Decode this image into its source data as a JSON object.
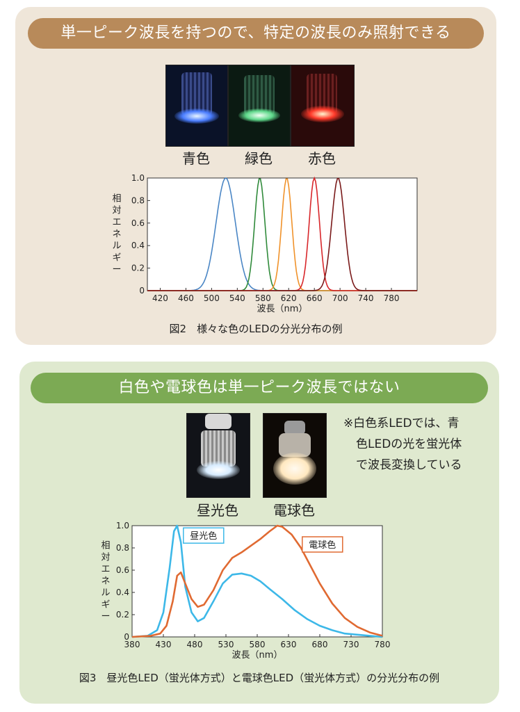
{
  "panel1": {
    "banner": "単一ピーク波長を持つので、特定の波長のみ照射できる",
    "photo_labels": [
      "青色",
      "緑色",
      "赤色"
    ],
    "caption": "図2　様々な色のLEDの分光分布の例",
    "chart_data": {
      "type": "line",
      "ylabel": "相対エネルギー",
      "xlabel": "波長（nm）",
      "xlim": [
        400,
        820
      ],
      "ylim": [
        0,
        1.0
      ],
      "xticks": [
        420,
        460,
        500,
        540,
        580,
        620,
        660,
        700,
        740,
        780
      ],
      "yticks": [
        "0",
        "0.2",
        "0.4",
        "0.6",
        "0.8",
        "1.0"
      ],
      "series": [
        {
          "color": "#4a86c5",
          "peak": 522,
          "width": 15
        },
        {
          "color": "#2f8a3a",
          "peak": 575,
          "width": 8
        },
        {
          "color": "#f0922a",
          "peak": 617,
          "width": 8
        },
        {
          "color": "#d8262a",
          "peak": 660,
          "width": 8
        },
        {
          "color": "#7a1a1a",
          "peak": 697,
          "width": 10
        }
      ]
    }
  },
  "panel2": {
    "banner": "白色や電球色は単一ピーク波長ではない",
    "photo_labels": [
      "昼光色",
      "電球色"
    ],
    "note_lines": [
      "※白色系LEDでは、青",
      "色LEDの光を蛍光体",
      "で波長変換している"
    ],
    "caption": "図3　昼光色LED（蛍光体方式）と電球色LED（蛍光体方式）の分光分布の例",
    "chart_data": {
      "type": "line",
      "ylabel": "相対エネルギー",
      "xlabel": "波長（nm）",
      "xlim": [
        380,
        780
      ],
      "ylim": [
        0,
        1.0
      ],
      "xticks": [
        380,
        430,
        480,
        530,
        580,
        630,
        680,
        730,
        780
      ],
      "yticks": [
        "0",
        "0.2",
        "0.4",
        "0.6",
        "0.8",
        "1.0"
      ],
      "series": [
        {
          "name": "昼光色",
          "color": "#3db8e8",
          "x": [
            380,
            405,
            420,
            430,
            440,
            447,
            452,
            458,
            465,
            475,
            485,
            495,
            510,
            525,
            540,
            555,
            570,
            585,
            600,
            620,
            640,
            660,
            680,
            700,
            720,
            740,
            760,
            780
          ],
          "y": [
            0,
            0.01,
            0.06,
            0.22,
            0.62,
            0.95,
            1.0,
            0.85,
            0.45,
            0.22,
            0.14,
            0.17,
            0.32,
            0.48,
            0.56,
            0.57,
            0.55,
            0.5,
            0.43,
            0.34,
            0.24,
            0.16,
            0.1,
            0.06,
            0.03,
            0.02,
            0.01,
            0.0
          ]
        },
        {
          "name": "電球色",
          "color": "#e06a32",
          "x": [
            380,
            410,
            425,
            435,
            445,
            452,
            458,
            465,
            475,
            485,
            495,
            510,
            525,
            540,
            555,
            570,
            585,
            600,
            612,
            620,
            635,
            650,
            665,
            680,
            700,
            720,
            740,
            760,
            780
          ],
          "y": [
            0,
            0.01,
            0.03,
            0.1,
            0.32,
            0.55,
            0.58,
            0.48,
            0.34,
            0.27,
            0.29,
            0.42,
            0.6,
            0.71,
            0.76,
            0.82,
            0.88,
            0.95,
            1.0,
            0.99,
            0.92,
            0.8,
            0.64,
            0.48,
            0.3,
            0.17,
            0.09,
            0.04,
            0.01
          ]
        }
      ]
    }
  }
}
